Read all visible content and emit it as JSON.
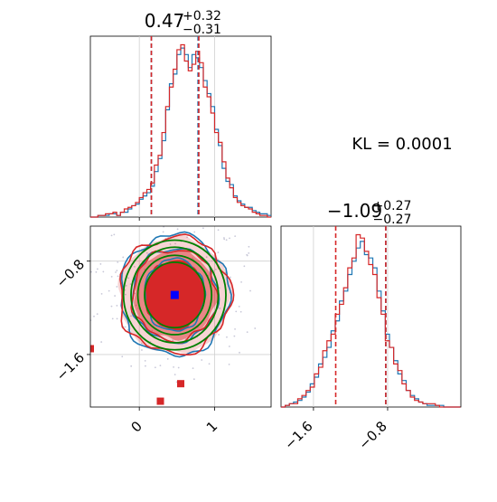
{
  "chart_data": [
    {
      "type": "histogram",
      "panel": "marginal-x",
      "title_value": "0.47",
      "title_plus": "+0.32",
      "title_minus": "−0.31",
      "xlim": [
        -0.65,
        1.75
      ],
      "x_ticks": [
        0,
        1
      ],
      "quantile_lines_red": [
        0.16,
        0.79
      ],
      "quantile_lines_blue": [
        0.16,
        0.78
      ],
      "series": [
        {
          "color": "#1f77b4",
          "bin_start": -0.65,
          "bin_width": 0.05,
          "values": [
            0,
            0,
            1,
            1,
            1,
            2,
            2,
            1,
            3,
            3,
            5,
            7,
            8,
            11,
            13,
            15,
            19,
            28,
            36,
            47,
            66,
            82,
            88,
            100,
            104,
            100,
            92,
            100,
            98,
            92,
            84,
            76,
            68,
            54,
            44,
            30,
            22,
            20,
            13,
            10,
            8,
            6,
            6,
            4,
            3,
            2,
            2,
            1
          ]
        },
        {
          "color": "#d62728",
          "bin_start": -0.65,
          "bin_width": 0.05,
          "values": [
            0,
            0,
            1,
            1,
            2,
            2,
            3,
            1,
            3,
            5,
            6,
            7,
            9,
            12,
            15,
            17,
            21,
            32,
            38,
            52,
            68,
            80,
            91,
            103,
            106,
            96,
            90,
            94,
            102,
            95,
            80,
            74,
            64,
            52,
            46,
            34,
            24,
            18,
            12,
            9,
            7,
            6,
            5,
            3,
            2,
            1,
            1,
            0
          ]
        }
      ]
    },
    {
      "type": "contour",
      "panel": "joint",
      "xlim": [
        -0.65,
        1.75
      ],
      "ylim": [
        -2.05,
        -0.5
      ],
      "x_ticks": [
        0,
        1
      ],
      "y_ticks": [
        -0.8,
        -1.6
      ],
      "y_tick_labels": [
        "−0.8",
        "−1.6"
      ],
      "center_point": [
        0.47,
        -1.09
      ],
      "outlier_points": [
        [
          -0.65,
          -1.55
        ],
        [
          0.28,
          -2.0
        ],
        [
          0.55,
          -1.85
        ]
      ],
      "colors": {
        "contour_a": "#1f77b4",
        "contour_b": "#d62728",
        "fill": "#d62728",
        "reference": "#008000",
        "center": "#0000ff"
      }
    },
    {
      "type": "histogram",
      "panel": "marginal-y",
      "title_value": "−1.09",
      "title_plus": "+0.27",
      "title_minus": "−0.27",
      "xlim": [
        -1.95,
        -0.01
      ],
      "x_ticks": [
        -1.6,
        -0.8
      ],
      "x_tick_labels": [
        "−1.6",
        "−0.8"
      ],
      "quantile_lines_red": [
        -1.36,
        -0.82
      ],
      "quantile_lines_blue": [
        -0.82
      ],
      "series": [
        {
          "color": "#1f77b4",
          "bin_start": -1.95,
          "bin_width": 0.045,
          "values": [
            0,
            1,
            2,
            3,
            4,
            6,
            9,
            14,
            18,
            26,
            30,
            36,
            46,
            52,
            64,
            70,
            80,
            88,
            96,
            100,
            92,
            90,
            84,
            70,
            58,
            44,
            36,
            28,
            20,
            16,
            10,
            7,
            5,
            3,
            2,
            1,
            1,
            1,
            1,
            0,
            0,
            0,
            0
          ]
        },
        {
          "color": "#d62728",
          "bin_start": -1.95,
          "bin_width": 0.045,
          "values": [
            0,
            1,
            2,
            2,
            5,
            7,
            10,
            12,
            20,
            24,
            34,
            40,
            44,
            56,
            62,
            72,
            84,
            90,
            104,
            102,
            94,
            86,
            80,
            66,
            56,
            40,
            36,
            26,
            22,
            14,
            10,
            6,
            4,
            3,
            2,
            2,
            2,
            1,
            0,
            0,
            0,
            0,
            0
          ]
        }
      ]
    }
  ],
  "annotation": {
    "kl_label": "KL = 0.0001"
  }
}
